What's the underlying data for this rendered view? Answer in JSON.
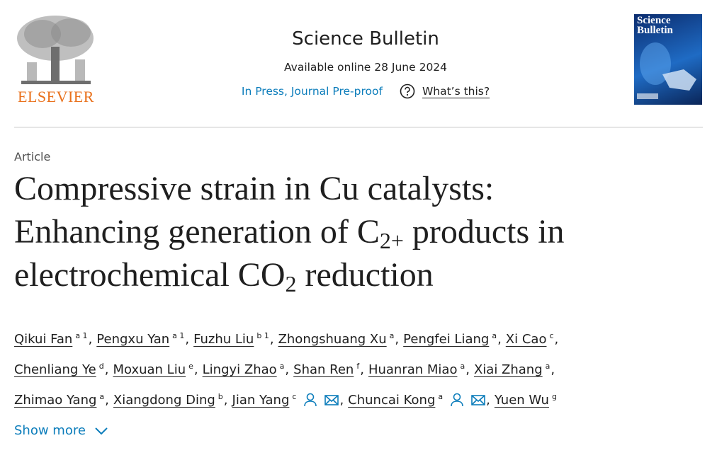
{
  "header": {
    "publisher": "ELSEVIER",
    "journal": "Science Bulletin",
    "available": "Available online 28 June 2024",
    "status": "In Press, Journal Pre-proof",
    "help": "What’s this?",
    "cover_title": "Science Bulletin"
  },
  "article_type": "Article",
  "title": [
    "Compressive strain in Cu catalysts:",
    "Enhancing generation of C",
    "2+",
    " products in",
    "electrochemical CO",
    "2",
    " reduction"
  ],
  "author_separator": ",",
  "author_lines": [
    [
      {
        "name": "Qikui Fan",
        "affiliations": "a 1"
      },
      {
        "name": "Pengxu Yan",
        "affiliations": "a 1"
      },
      {
        "name": "Fuzhu Liu",
        "affiliations": "b 1"
      },
      {
        "name": "Zhongshuang Xu",
        "affiliations": "a"
      },
      {
        "name": "Pengfei Liang",
        "affiliations": "a"
      },
      {
        "name": "Xi Cao",
        "affiliations": "c"
      }
    ],
    [
      {
        "name": "Chenliang Ye",
        "affiliations": "d"
      },
      {
        "name": "Moxuan Liu",
        "affiliations": "e"
      },
      {
        "name": "Lingyi Zhao",
        "affiliations": "a"
      },
      {
        "name": "Shan Ren",
        "affiliations": "f"
      },
      {
        "name": "Huanran Miao",
        "affiliations": "a"
      },
      {
        "name": "Xiai Zhang",
        "affiliations": "a"
      }
    ],
    [
      {
        "name": "Zhimao Yang",
        "affiliations": "a"
      },
      {
        "name": "Xiangdong Ding",
        "affiliations": "b"
      },
      {
        "name": "Jian Yang",
        "affiliations": "c",
        "contact": true
      },
      {
        "name": "Chuncai Kong",
        "affiliations": "a",
        "contact": true
      },
      {
        "name": "Yuen Wu",
        "affiliations": "g"
      }
    ]
  ],
  "show_more": "Show more"
}
